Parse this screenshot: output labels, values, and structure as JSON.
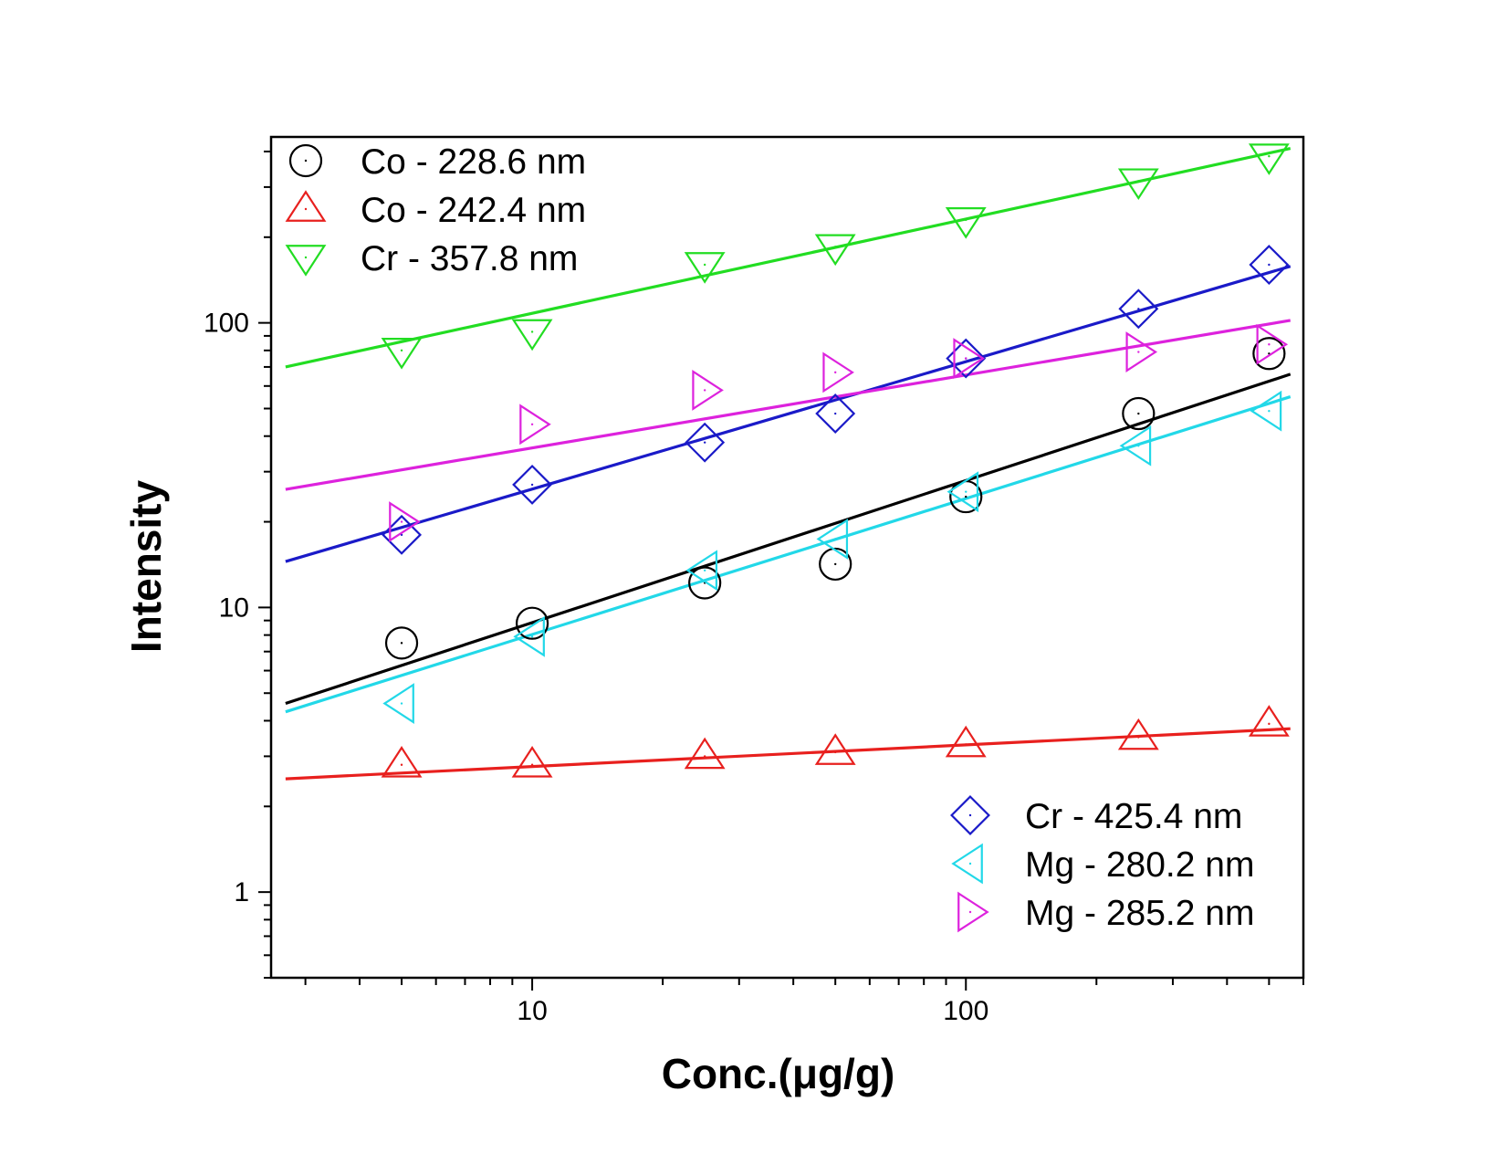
{
  "chart_data": {
    "type": "scatter",
    "title": "",
    "xlabel": "Conc.(μg/g)",
    "ylabel": "Intensity",
    "xscale": "log",
    "yscale": "log",
    "xlim": [
      2.5,
      600
    ],
    "ylim": [
      0.5,
      450
    ],
    "x_ticks": [
      {
        "value": 10,
        "label": "10"
      },
      {
        "value": 100,
        "label": "100"
      }
    ],
    "y_ticks": [
      {
        "value": 1,
        "label": "1"
      },
      {
        "value": 10,
        "label": "10"
      },
      {
        "value": 100,
        "label": "100"
      }
    ],
    "x": [
      5,
      10,
      25,
      50,
      100,
      250,
      500
    ],
    "series": [
      {
        "name": "Co - 228.6 nm",
        "color": "#000000",
        "marker": "circle",
        "legend_group": "top-left",
        "values": [
          7.5,
          8.8,
          12.2,
          14.2,
          24.5,
          48,
          78
        ],
        "fit": {
          "x": [
            2.7,
            560
          ],
          "y": [
            4.6,
            66
          ]
        }
      },
      {
        "name": "Co - 242.4 nm",
        "color": "#e8201e",
        "marker": "triangle-up",
        "legend_group": "top-left",
        "values": [
          2.8,
          2.8,
          3.0,
          3.1,
          3.3,
          3.5,
          3.9
        ],
        "fit": {
          "x": [
            2.7,
            560
          ],
          "y": [
            2.5,
            3.75
          ]
        }
      },
      {
        "name": "Cr - 357.8 nm",
        "color": "#22dd22",
        "marker": "triangle-down",
        "legend_group": "top-left",
        "values": [
          80,
          93,
          160,
          185,
          230,
          315,
          385
        ],
        "fit": {
          "x": [
            2.7,
            560
          ],
          "y": [
            70,
            410
          ]
        }
      },
      {
        "name": "Cr - 425.4 nm",
        "color": "#1a1ac8",
        "marker": "diamond",
        "legend_group": "bottom-right",
        "values": [
          18,
          27,
          38,
          48,
          75,
          112,
          160
        ],
        "fit": {
          "x": [
            2.7,
            560
          ],
          "y": [
            14.5,
            158
          ]
        }
      },
      {
        "name": "Mg - 280.2 nm",
        "color": "#22d8e8",
        "marker": "triangle-left",
        "legend_group": "bottom-right",
        "values": [
          4.6,
          7.9,
          13.5,
          17.4,
          25.5,
          37,
          49
        ],
        "fit": {
          "x": [
            2.7,
            560
          ],
          "y": [
            4.3,
            55
          ]
        }
      },
      {
        "name": "Mg - 285.2 nm",
        "color": "#dd22dd",
        "marker": "triangle-right",
        "legend_group": "bottom-right",
        "values": [
          20,
          44,
          58,
          67,
          75,
          79,
          84
        ],
        "fit": {
          "x": [
            2.7,
            560
          ],
          "y": [
            26,
            102
          ]
        }
      }
    ],
    "legend_placement": [
      "top-left",
      "bottom-right"
    ]
  }
}
